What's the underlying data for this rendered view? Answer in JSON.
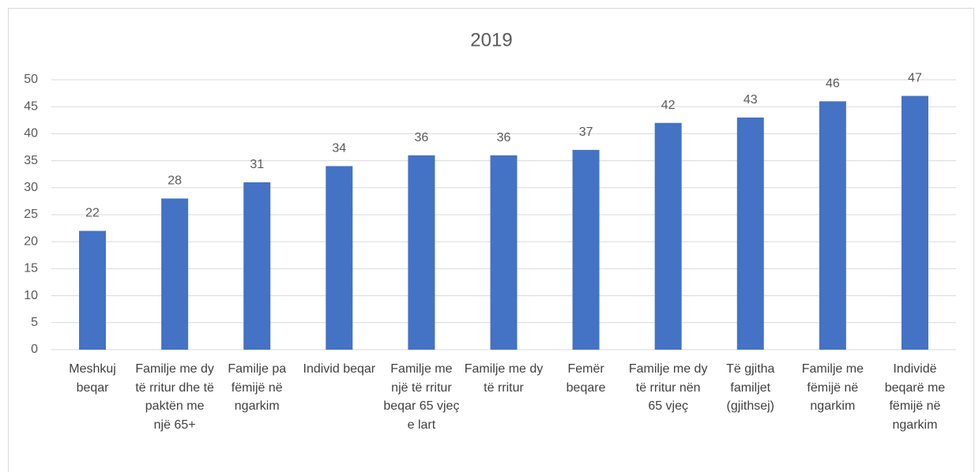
{
  "chart_data": {
    "type": "bar",
    "title": "2019",
    "categories": [
      "Meshkuj beqar",
      "Familje me dy të rritur dhe të paktën me një 65+",
      "Familje pa fëmijë në ngarkim",
      "Individ beqar",
      "Familje me një të rritur beqar 65 vjeç e lart",
      "Familje me dy të rritur",
      "Femër beqare",
      "Familje me dy të rritur nën 65 vjeç",
      "Të gjitha familjet (gjithsej)",
      "Familje me fëmijë në ngarkim",
      "Individë beqarë me fëmijë në ngarkim"
    ],
    "values": [
      22,
      28,
      31,
      34,
      36,
      36,
      37,
      42,
      43,
      46,
      47
    ],
    "color": "#4472c4",
    "ylim": [
      0,
      50
    ],
    "yticks": [
      0,
      5,
      10,
      15,
      20,
      25,
      30,
      35,
      40,
      45,
      50
    ],
    "grid": true
  }
}
